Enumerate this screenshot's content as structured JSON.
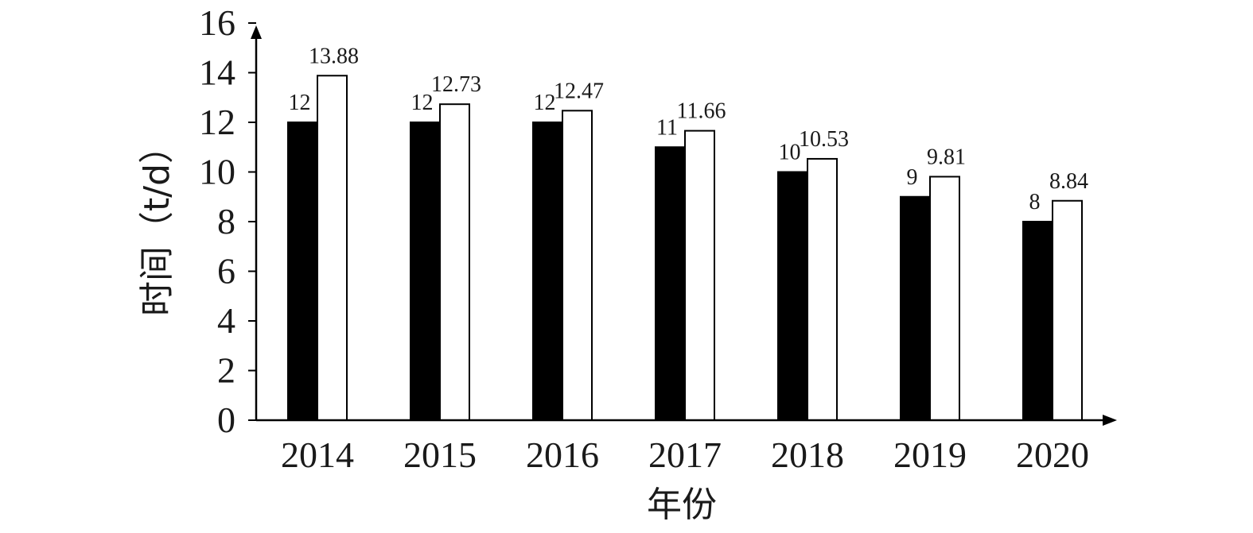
{
  "chart_data": {
    "type": "bar",
    "categories": [
      "2014",
      "2015",
      "2016",
      "2017",
      "2018",
      "2019",
      "2020"
    ],
    "series": [
      {
        "values": [
          12,
          12,
          12,
          11,
          10,
          9,
          8
        ],
        "color": "#000000"
      },
      {
        "values": [
          13.88,
          12.73,
          12.47,
          11.66,
          10.53,
          9.81,
          8.84
        ],
        "color": "#ffffff"
      }
    ],
    "value_labels": [
      [
        "12",
        "12",
        "12",
        "11",
        "10",
        "9",
        "8"
      ],
      [
        "13.88",
        "12.73",
        "12.47",
        "11.66",
        "10.53",
        "9.81",
        "8.84"
      ]
    ],
    "xlabel": "年份",
    "ylabel": "时间（t/d）",
    "ylim": [
      0,
      16
    ],
    "yticks": [
      0,
      2,
      4,
      6,
      8,
      10,
      12,
      14,
      16
    ],
    "grid": false,
    "legend": "none"
  }
}
